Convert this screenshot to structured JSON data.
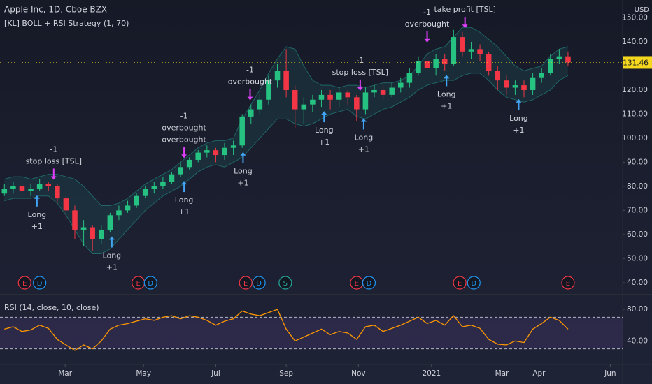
{
  "chart_data": {
    "type": "candlestick",
    "title": "Apple Inc, 1D, Cboe BZX",
    "subtitle": "[KL] BOLL + RSI Strategy (1, 70)",
    "currency": "USD",
    "up_color": "#26c281",
    "down_color": "#f23645",
    "open": [
      77,
      79,
      80,
      78,
      79,
      81,
      80,
      75,
      70,
      62,
      63,
      58,
      62,
      68,
      70,
      72,
      76,
      79,
      80,
      82,
      85,
      88,
      91,
      94,
      95,
      93,
      96,
      97,
      109,
      112,
      116,
      124,
      128,
      120,
      112,
      114,
      116,
      118,
      116,
      119,
      117,
      112,
      119,
      120,
      118,
      121,
      123,
      127,
      132,
      129,
      133,
      131,
      142,
      136,
      137,
      135,
      128,
      124,
      121,
      122,
      120,
      125,
      127,
      133,
      134
    ],
    "high": [
      81,
      82,
      82,
      81,
      83,
      82,
      81,
      76,
      72,
      66,
      64,
      64,
      69,
      72,
      74,
      77,
      80,
      82,
      84,
      86,
      90,
      92,
      95,
      97,
      96,
      98,
      99,
      110,
      114,
      118,
      126,
      131,
      137,
      122,
      117,
      118,
      120,
      120,
      121,
      120,
      118,
      121,
      122,
      122,
      123,
      125,
      129,
      134,
      138,
      135,
      135,
      145,
      144,
      140,
      139,
      136,
      130,
      126,
      124,
      124,
      127,
      129,
      135,
      137,
      136
    ],
    "low": [
      76,
      77,
      76,
      76,
      78,
      78,
      73,
      66,
      58,
      55,
      53,
      56,
      61,
      66,
      69,
      71,
      75,
      77,
      79,
      81,
      84,
      87,
      90,
      92,
      90,
      91,
      93,
      96,
      106,
      110,
      114,
      121,
      117,
      104,
      106,
      111,
      113,
      112,
      113,
      114,
      107,
      110,
      117,
      116,
      117,
      119,
      121,
      126,
      127,
      126,
      128,
      130,
      134,
      133,
      132,
      126,
      120,
      118,
      118,
      117,
      118,
      123,
      126,
      131,
      130
    ],
    "close": [
      79,
      80,
      78,
      79,
      81,
      80,
      75,
      70,
      62,
      63,
      58,
      62,
      68,
      70,
      72,
      76,
      79,
      80,
      82,
      85,
      88,
      91,
      94,
      95,
      93,
      96,
      97,
      109,
      112,
      116,
      124,
      128,
      120,
      112,
      114,
      116,
      118,
      116,
      119,
      117,
      112,
      119,
      120,
      118,
      121,
      123,
      127,
      132,
      129,
      133,
      131,
      142,
      136,
      137,
      135,
      128,
      124,
      121,
      122,
      120,
      125,
      127,
      133,
      134,
      131.46
    ],
    "bands": {
      "color": "#26a69a",
      "upper": [
        83,
        84,
        84,
        83,
        84,
        85,
        85,
        84,
        83,
        80,
        76,
        72,
        72,
        73,
        75,
        78,
        81,
        83,
        85,
        87,
        90,
        93,
        96,
        98,
        99,
        99,
        100,
        108,
        114,
        120,
        127,
        133,
        138,
        137,
        130,
        124,
        122,
        122,
        121,
        122,
        122,
        121,
        122,
        123,
        123,
        124,
        126,
        130,
        135,
        137,
        138,
        142,
        146,
        146,
        144,
        141,
        138,
        134,
        130,
        128,
        129,
        130,
        134,
        137,
        138
      ],
      "lower": [
        74,
        75,
        75,
        75,
        76,
        76,
        73,
        68,
        62,
        56,
        52,
        52,
        54,
        58,
        62,
        66,
        70,
        73,
        76,
        78,
        80,
        83,
        86,
        88,
        89,
        88,
        90,
        92,
        96,
        100,
        104,
        108,
        108,
        106,
        105,
        106,
        108,
        110,
        111,
        112,
        109,
        108,
        110,
        112,
        113,
        115,
        117,
        120,
        122,
        123,
        124,
        124,
        126,
        127,
        127,
        124,
        120,
        117,
        116,
        115,
        116,
        118,
        120,
        124,
        126
      ]
    },
    "xlim": [
      -0.5,
      70.2
    ],
    "xticks": [
      {
        "value": 6.9,
        "label": "Mar"
      },
      {
        "value": 15.8,
        "label": "May"
      },
      {
        "value": 24.0,
        "label": "Jul"
      },
      {
        "value": 32.0,
        "label": "Sep"
      },
      {
        "value": 40.2,
        "label": "Nov"
      },
      {
        "value": 48.5,
        "label": "2021"
      },
      {
        "value": 56.5,
        "label": "Mar"
      },
      {
        "value": 60.7,
        "label": "Apr"
      },
      {
        "value": 68.8,
        "label": "Jun"
      }
    ],
    "ylim": [
      35.6,
      157.4
    ],
    "yticks": [
      {
        "value": 40,
        "label": "40.00"
      },
      {
        "value": 50,
        "label": "50.00"
      },
      {
        "value": 60,
        "label": "60.00"
      },
      {
        "value": 70,
        "label": "70.00"
      },
      {
        "value": 80,
        "label": "80.00"
      },
      {
        "value": 90,
        "label": "90.00"
      },
      {
        "value": 100,
        "label": "100.00"
      },
      {
        "value": 110,
        "label": "110.00"
      },
      {
        "value": 120,
        "label": "120.00"
      },
      {
        "value": 140,
        "label": "140.00"
      },
      {
        "value": 150,
        "label": "150.00"
      }
    ],
    "last_price": 131.46,
    "last_price_color": "#f5d71e",
    "signals": [
      {
        "at": 5.6,
        "side": "short",
        "lines": [
          "-1",
          "stop loss [TSL]"
        ]
      },
      {
        "at": 3.7,
        "side": "long",
        "lines": [
          "Long",
          "+1"
        ]
      },
      {
        "at": 12.2,
        "side": "long",
        "lines": [
          "Long",
          "+1"
        ]
      },
      {
        "at": 20.4,
        "side": "short",
        "lines": [
          "-1",
          "overbought",
          "overbought"
        ]
      },
      {
        "at": 20.4,
        "side": "long",
        "lines": [
          "Long",
          "+1"
        ]
      },
      {
        "at": 27.1,
        "side": "long",
        "lines": [
          "Long",
          "+1"
        ]
      },
      {
        "at": 27.9,
        "side": "short",
        "lines": [
          "-1",
          "overbought"
        ]
      },
      {
        "at": 36.3,
        "side": "long",
        "lines": [
          "Long",
          "+1"
        ]
      },
      {
        "at": 40.4,
        "side": "short",
        "lines": [
          "-1",
          "stop loss [TSL]"
        ]
      },
      {
        "at": 40.8,
        "side": "long",
        "lines": [
          "Long",
          "+1"
        ]
      },
      {
        "at": 48.0,
        "side": "short",
        "lines": [
          "-1",
          "overbought"
        ]
      },
      {
        "at": 50.2,
        "side": "long",
        "lines": [
          "Long",
          "+1"
        ]
      },
      {
        "at": 52.3,
        "side": "short",
        "lines": [
          "-1",
          "take profit [TSL]"
        ]
      },
      {
        "at": 58.4,
        "side": "long",
        "lines": [
          "Long",
          "+1"
        ]
      }
    ],
    "events": [
      {
        "label": "E",
        "at": 2.3,
        "color": "#f23645"
      },
      {
        "label": "D",
        "at": 4.0,
        "color": "#2196f3"
      },
      {
        "label": "E",
        "at": 15.2,
        "color": "#f23645"
      },
      {
        "label": "D",
        "at": 16.6,
        "color": "#2196f3"
      },
      {
        "label": "E",
        "at": 27.4,
        "color": "#f23645"
      },
      {
        "label": "D",
        "at": 28.9,
        "color": "#2196f3"
      },
      {
        "label": "S",
        "at": 31.9,
        "color": "#26a69a"
      },
      {
        "label": "E",
        "at": 40.0,
        "color": "#f23645"
      },
      {
        "label": "D",
        "at": 41.4,
        "color": "#2196f3"
      },
      {
        "label": "E",
        "at": 51.7,
        "color": "#f23645"
      },
      {
        "label": "D",
        "at": 53.3,
        "color": "#2196f3"
      },
      {
        "label": "E",
        "at": 64.0,
        "color": "#f23645"
      }
    ],
    "rsi": {
      "title": "RSI (14, close, 10, close)",
      "color": "#ff9800",
      "values": [
        55,
        58,
        52,
        54,
        60,
        56,
        42,
        35,
        28,
        35,
        30,
        40,
        55,
        60,
        62,
        65,
        68,
        66,
        70,
        72,
        68,
        72,
        70,
        66,
        60,
        65,
        68,
        78,
        74,
        72,
        76,
        80,
        55,
        40,
        45,
        50,
        55,
        48,
        52,
        50,
        42,
        58,
        60,
        52,
        56,
        60,
        65,
        70,
        62,
        66,
        60,
        72,
        58,
        60,
        56,
        42,
        36,
        35,
        40,
        38,
        55,
        62,
        70,
        66,
        55
      ],
      "levels": [
        70,
        30
      ],
      "ylim": [
        12,
        96
      ],
      "yticks": [
        {
          "value": 80,
          "label": "80.00"
        },
        {
          "value": 40,
          "label": "40.00"
        }
      ]
    }
  }
}
